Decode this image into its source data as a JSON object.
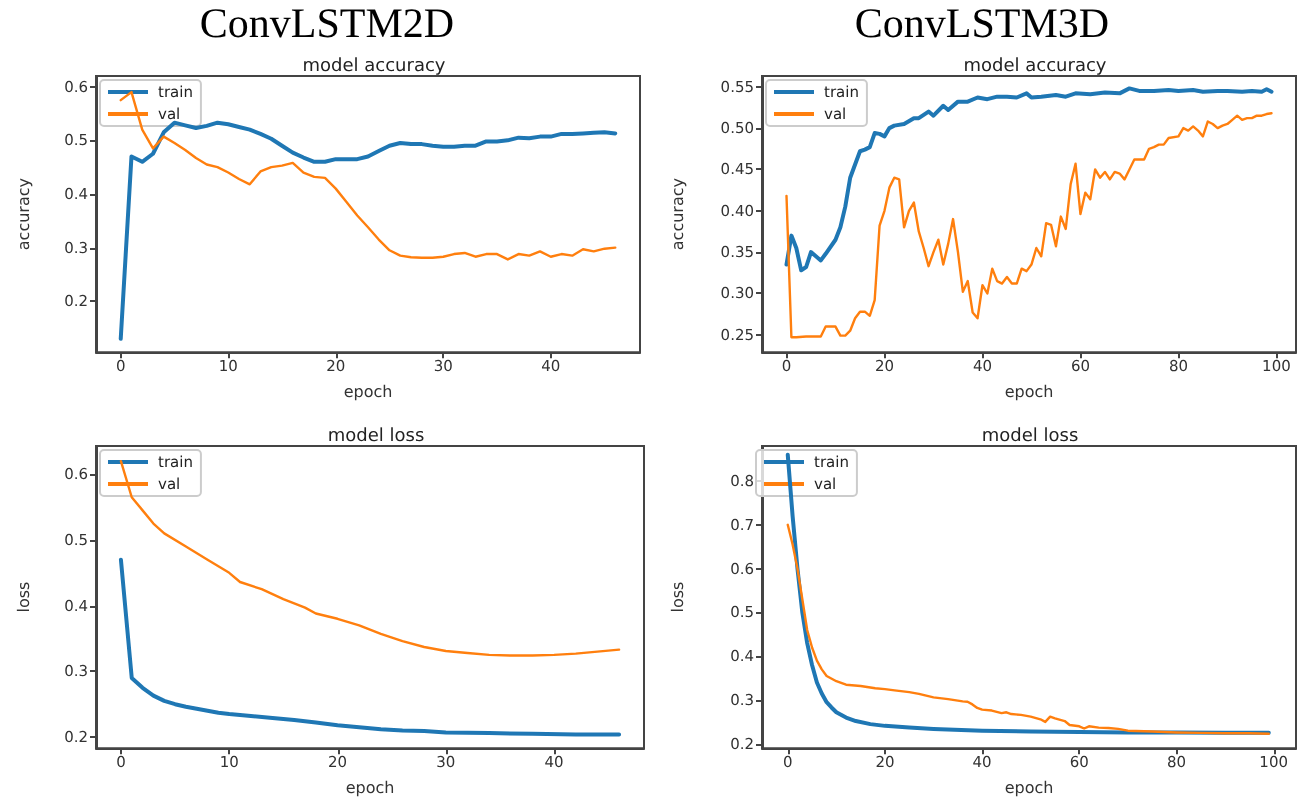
{
  "chart_data": [
    {
      "type": "line",
      "title": "model accuracy",
      "annotations": [
        "ConvLSTM2D"
      ],
      "xlabel": "epoch",
      "ylabel": "accuracy",
      "xlim": [
        -2.3,
        48.3
      ],
      "ylim": [
        0.105,
        0.62
      ],
      "xticks": [
        0,
        10,
        20,
        30,
        40
      ],
      "yticks": [
        0.2,
        0.3,
        0.4,
        0.5,
        0.6
      ],
      "legend": "top left",
      "grid": false,
      "marker": "none",
      "line_style": "solid",
      "series": [
        {
          "name": "train",
          "color": "#1f77b4",
          "x": [
            0,
            1,
            2,
            3,
            4,
            5,
            6,
            7,
            8,
            9,
            10,
            11,
            12,
            13,
            14,
            15,
            16,
            17,
            18,
            19,
            20,
            21,
            22,
            23,
            24,
            25,
            26,
            27,
            28,
            29,
            30,
            31,
            32,
            33,
            34,
            35,
            36,
            37,
            38,
            39,
            40,
            41,
            42,
            43,
            44,
            45,
            46
          ],
          "values": [
            0.13,
            0.47,
            0.46,
            0.475,
            0.515,
            0.533,
            0.528,
            0.523,
            0.527,
            0.533,
            0.53,
            0.525,
            0.52,
            0.512,
            0.503,
            0.49,
            0.477,
            0.468,
            0.46,
            0.46,
            0.465,
            0.465,
            0.465,
            0.47,
            0.48,
            0.49,
            0.495,
            0.493,
            0.493,
            0.49,
            0.488,
            0.488,
            0.49,
            0.49,
            0.498,
            0.498,
            0.5,
            0.505,
            0.504,
            0.507,
            0.507,
            0.512,
            0.512,
            0.513,
            0.514,
            0.515,
            0.513
          ]
        },
        {
          "name": "val",
          "color": "#ff7f0e",
          "x": [
            0,
            1,
            2,
            3,
            4,
            5,
            6,
            7,
            8,
            9,
            10,
            11,
            12,
            13,
            14,
            15,
            16,
            17,
            18,
            19,
            20,
            21,
            22,
            23,
            24,
            25,
            26,
            27,
            28,
            29,
            30,
            31,
            32,
            33,
            34,
            35,
            36,
            37,
            38,
            39,
            40,
            41,
            42,
            43,
            44,
            45,
            46
          ],
          "values": [
            0.575,
            0.59,
            0.52,
            0.485,
            0.507,
            0.495,
            0.482,
            0.467,
            0.455,
            0.45,
            0.44,
            0.428,
            0.418,
            0.442,
            0.45,
            0.453,
            0.458,
            0.44,
            0.432,
            0.43,
            0.41,
            0.385,
            0.36,
            0.338,
            0.315,
            0.295,
            0.285,
            0.282,
            0.281,
            0.281,
            0.283,
            0.288,
            0.29,
            0.283,
            0.288,
            0.288,
            0.278,
            0.288,
            0.285,
            0.293,
            0.283,
            0.288,
            0.285,
            0.297,
            0.293,
            0.298,
            0.3
          ]
        }
      ]
    },
    {
      "type": "line",
      "title": "model accuracy",
      "annotations": [
        "ConvLSTM3D"
      ],
      "xlabel": "epoch",
      "ylabel": "accuracy",
      "xlim": [
        -5,
        104
      ],
      "ylim": [
        0.229,
        0.563
      ],
      "xticks": [
        0,
        20,
        40,
        60,
        80,
        100
      ],
      "yticks": [
        {
          "value": 0.25,
          "label": "0.25"
        },
        {
          "value": 0.3,
          "label": "0.30"
        },
        {
          "value": 0.35,
          "label": "0.35"
        },
        {
          "value": 0.4,
          "label": "0.40"
        },
        {
          "value": 0.45,
          "label": "0.45"
        },
        {
          "value": 0.5,
          "label": "0.50"
        },
        {
          "value": 0.55,
          "label": "0.55"
        }
      ],
      "legend": "top left",
      "grid": false,
      "marker": "none",
      "line_style": "solid",
      "series": [
        {
          "name": "train",
          "color": "#1f77b4",
          "x": [
            0,
            1,
            2,
            3,
            4,
            5,
            6,
            7,
            8,
            10,
            11,
            12,
            13,
            15,
            16,
            17,
            18,
            19,
            20,
            21,
            22,
            24,
            26,
            27,
            29,
            30,
            32,
            33,
            35,
            37,
            39,
            41,
            43,
            45,
            47,
            49,
            50,
            52,
            55,
            57,
            59,
            62,
            65,
            68,
            70,
            72,
            75,
            78,
            80,
            83,
            85,
            88,
            90,
            93,
            95,
            97,
            98,
            99
          ],
          "values": [
            0.335,
            0.37,
            0.355,
            0.328,
            0.332,
            0.35,
            0.345,
            0.34,
            0.348,
            0.365,
            0.38,
            0.405,
            0.44,
            0.472,
            0.474,
            0.477,
            0.494,
            0.493,
            0.49,
            0.5,
            0.503,
            0.505,
            0.512,
            0.512,
            0.52,
            0.515,
            0.527,
            0.522,
            0.532,
            0.532,
            0.537,
            0.535,
            0.538,
            0.538,
            0.537,
            0.542,
            0.537,
            0.538,
            0.54,
            0.538,
            0.542,
            0.541,
            0.543,
            0.542,
            0.548,
            0.545,
            0.545,
            0.546,
            0.545,
            0.546,
            0.544,
            0.545,
            0.545,
            0.544,
            0.545,
            0.544,
            0.547,
            0.544
          ]
        },
        {
          "name": "val",
          "color": "#ff7f0e",
          "x": [
            0,
            1,
            2,
            4,
            6,
            7,
            8,
            10,
            11,
            12,
            13,
            14,
            15,
            16,
            17,
            18,
            19,
            20,
            21,
            22,
            23,
            24,
            25,
            26,
            27,
            28,
            29,
            30,
            31,
            32,
            33,
            34,
            35,
            36,
            37,
            38,
            39,
            40,
            41,
            42,
            43,
            44,
            45,
            46,
            47,
            48,
            49,
            50,
            51,
            52,
            53,
            54,
            55,
            56,
            57,
            58,
            59,
            60,
            61,
            62,
            63,
            64,
            65,
            66,
            67,
            68,
            69,
            70,
            71,
            72,
            73,
            74,
            75,
            76,
            77,
            78,
            80,
            81,
            82,
            83,
            84,
            85,
            86,
            87,
            88,
            89,
            90,
            91,
            92,
            93,
            94,
            95,
            96,
            97,
            98,
            99
          ],
          "values": [
            0.418,
            0.247,
            0.247,
            0.248,
            0.248,
            0.248,
            0.26,
            0.26,
            0.249,
            0.249,
            0.255,
            0.27,
            0.278,
            0.278,
            0.273,
            0.292,
            0.382,
            0.4,
            0.428,
            0.44,
            0.438,
            0.38,
            0.4,
            0.41,
            0.375,
            0.355,
            0.333,
            0.35,
            0.365,
            0.335,
            0.36,
            0.39,
            0.35,
            0.302,
            0.315,
            0.277,
            0.27,
            0.31,
            0.3,
            0.33,
            0.315,
            0.312,
            0.32,
            0.312,
            0.312,
            0.33,
            0.327,
            0.335,
            0.355,
            0.345,
            0.385,
            0.383,
            0.357,
            0.393,
            0.378,
            0.432,
            0.457,
            0.396,
            0.422,
            0.414,
            0.45,
            0.44,
            0.447,
            0.438,
            0.447,
            0.445,
            0.438,
            0.45,
            0.462,
            0.462,
            0.462,
            0.475,
            0.477,
            0.48,
            0.48,
            0.488,
            0.49,
            0.5,
            0.497,
            0.502,
            0.497,
            0.49,
            0.508,
            0.505,
            0.5,
            0.503,
            0.505,
            0.51,
            0.515,
            0.51,
            0.512,
            0.512,
            0.515,
            0.515,
            0.517,
            0.518
          ]
        }
      ]
    },
    {
      "type": "line",
      "title": "model loss",
      "xlabel": "epoch",
      "ylabel": "loss",
      "xlim": [
        -2.3,
        48.3
      ],
      "ylim": [
        0.183,
        0.643
      ],
      "xticks": [
        0,
        10,
        20,
        30,
        40
      ],
      "yticks": [
        0.2,
        0.3,
        0.4,
        0.5,
        0.6
      ],
      "legend": "top left",
      "grid": false,
      "marker": "none",
      "line_style": "solid",
      "series": [
        {
          "name": "train",
          "color": "#1f77b4",
          "x": [
            0,
            1,
            2,
            3,
            4,
            5,
            6,
            7,
            8,
            9,
            10,
            12,
            14,
            16,
            18,
            20,
            22,
            24,
            26,
            28,
            30,
            34,
            38,
            42,
            46
          ],
          "values": [
            0.47,
            0.29,
            0.275,
            0.263,
            0.255,
            0.25,
            0.246,
            0.243,
            0.24,
            0.237,
            0.235,
            0.232,
            0.229,
            0.226,
            0.222,
            0.218,
            0.215,
            0.212,
            0.21,
            0.209,
            0.207,
            0.206,
            0.205,
            0.204,
            0.204
          ]
        },
        {
          "name": "val",
          "color": "#ff7f0e",
          "x": [
            0,
            1,
            2,
            3,
            4,
            6,
            8,
            10,
            11,
            13,
            15,
            17,
            18,
            20,
            22,
            24,
            26,
            28,
            30,
            32,
            34,
            36,
            38,
            40,
            42,
            44,
            46
          ],
          "values": [
            0.62,
            0.565,
            0.545,
            0.525,
            0.51,
            0.49,
            0.47,
            0.45,
            0.436,
            0.425,
            0.41,
            0.397,
            0.388,
            0.38,
            0.37,
            0.357,
            0.346,
            0.337,
            0.331,
            0.328,
            0.325,
            0.324,
            0.324,
            0.325,
            0.327,
            0.33,
            0.333
          ]
        }
      ]
    },
    {
      "type": "line",
      "title": "model loss",
      "xlabel": "epoch",
      "ylabel": "loss",
      "xlim": [
        -5.3,
        104.6
      ],
      "ylim": [
        0.19,
        0.88
      ],
      "xticks": [
        0,
        20,
        40,
        60,
        80,
        100
      ],
      "yticks": [
        0.2,
        0.3,
        0.4,
        0.5,
        0.6,
        0.7,
        0.8
      ],
      "legend": "top left",
      "grid": false,
      "marker": "none",
      "line_style": "solid",
      "series": [
        {
          "name": "train",
          "color": "#1f77b4",
          "x": [
            0,
            1,
            2,
            3,
            4,
            5,
            6,
            7,
            8,
            9,
            10,
            12,
            14,
            17,
            20,
            25,
            30,
            40,
            50,
            60,
            70,
            80,
            90,
            99
          ],
          "values": [
            0.86,
            0.72,
            0.6,
            0.5,
            0.43,
            0.38,
            0.34,
            0.315,
            0.295,
            0.283,
            0.272,
            0.26,
            0.252,
            0.245,
            0.241,
            0.237,
            0.234,
            0.23,
            0.228,
            0.227,
            0.226,
            0.226,
            0.225,
            0.225
          ]
        },
        {
          "name": "val",
          "color": "#ff7f0e",
          "x": [
            0,
            1,
            2,
            3,
            4,
            5,
            6,
            7,
            8,
            10,
            12,
            15,
            18,
            20,
            22,
            25,
            27,
            30,
            33,
            36,
            37,
            38,
            39,
            40,
            42,
            44,
            45,
            46,
            48,
            50,
            52,
            53,
            54,
            55,
            57,
            58,
            60,
            61,
            62,
            64,
            66,
            68,
            70,
            75,
            80,
            85,
            90,
            95,
            99
          ],
          "values": [
            0.7,
            0.655,
            0.6,
            0.53,
            0.46,
            0.42,
            0.39,
            0.37,
            0.355,
            0.343,
            0.335,
            0.332,
            0.327,
            0.325,
            0.322,
            0.318,
            0.314,
            0.306,
            0.302,
            0.297,
            0.296,
            0.29,
            0.282,
            0.278,
            0.276,
            0.27,
            0.272,
            0.268,
            0.266,
            0.262,
            0.256,
            0.25,
            0.262,
            0.258,
            0.252,
            0.243,
            0.24,
            0.235,
            0.24,
            0.237,
            0.236,
            0.234,
            0.23,
            0.228,
            0.226,
            0.225,
            0.224,
            0.224,
            0.223
          ]
        }
      ]
    }
  ]
}
